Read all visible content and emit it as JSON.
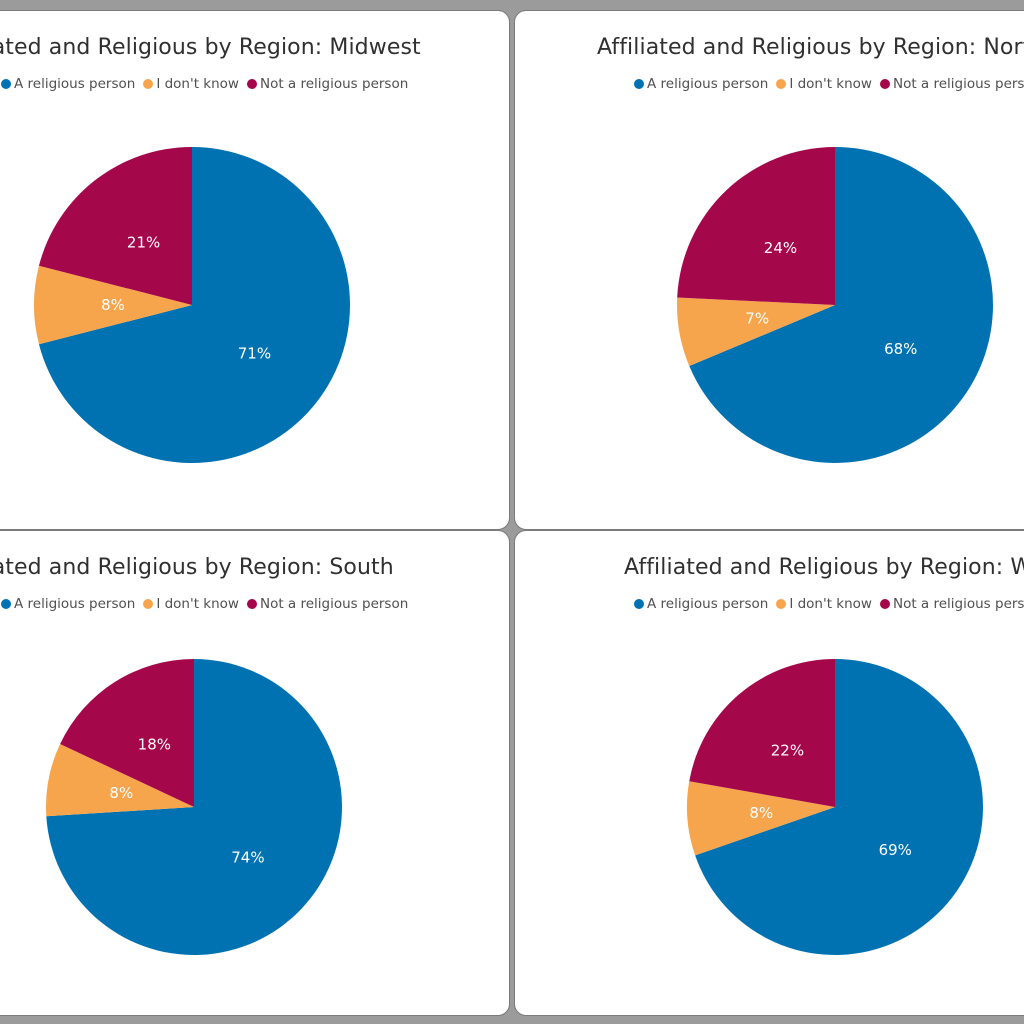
{
  "colors": {
    "religious": "#0072b2",
    "dont_know": "#f7a54d",
    "not_religious": "#a5074b",
    "bg": "#9b9b9b"
  },
  "legend_labels": [
    "A religious person",
    "I don't know",
    "Not a religious person"
  ],
  "chart_data": [
    {
      "type": "pie",
      "title": "Affiliated and Religious by Region: Midwest",
      "labels": [
        "A religious person",
        "I don't know",
        "Not a religious person"
      ],
      "values": [
        71,
        8,
        21
      ],
      "data_labels": [
        "71%",
        "8%",
        "21%"
      ]
    },
    {
      "type": "pie",
      "title": "Affiliated and Religious by Region: Northeast",
      "labels": [
        "A religious person",
        "I don't know",
        "Not a religious person"
      ],
      "values": [
        68,
        7,
        24
      ],
      "data_labels": [
        "68%",
        "7%",
        "24%"
      ]
    },
    {
      "type": "pie",
      "title": "Affiliated and Religious by Region: South",
      "labels": [
        "A religious person",
        "I don't know",
        "Not a religious person"
      ],
      "values": [
        74,
        8,
        18
      ],
      "data_labels": [
        "74%",
        "8%",
        "18%"
      ]
    },
    {
      "type": "pie",
      "title": "Affiliated and Religious by Region: West",
      "labels": [
        "A religious person",
        "I don't know",
        "Not a religious person"
      ],
      "values": [
        69,
        8,
        22
      ],
      "data_labels": [
        "69%",
        "8%",
        "22%"
      ]
    }
  ]
}
